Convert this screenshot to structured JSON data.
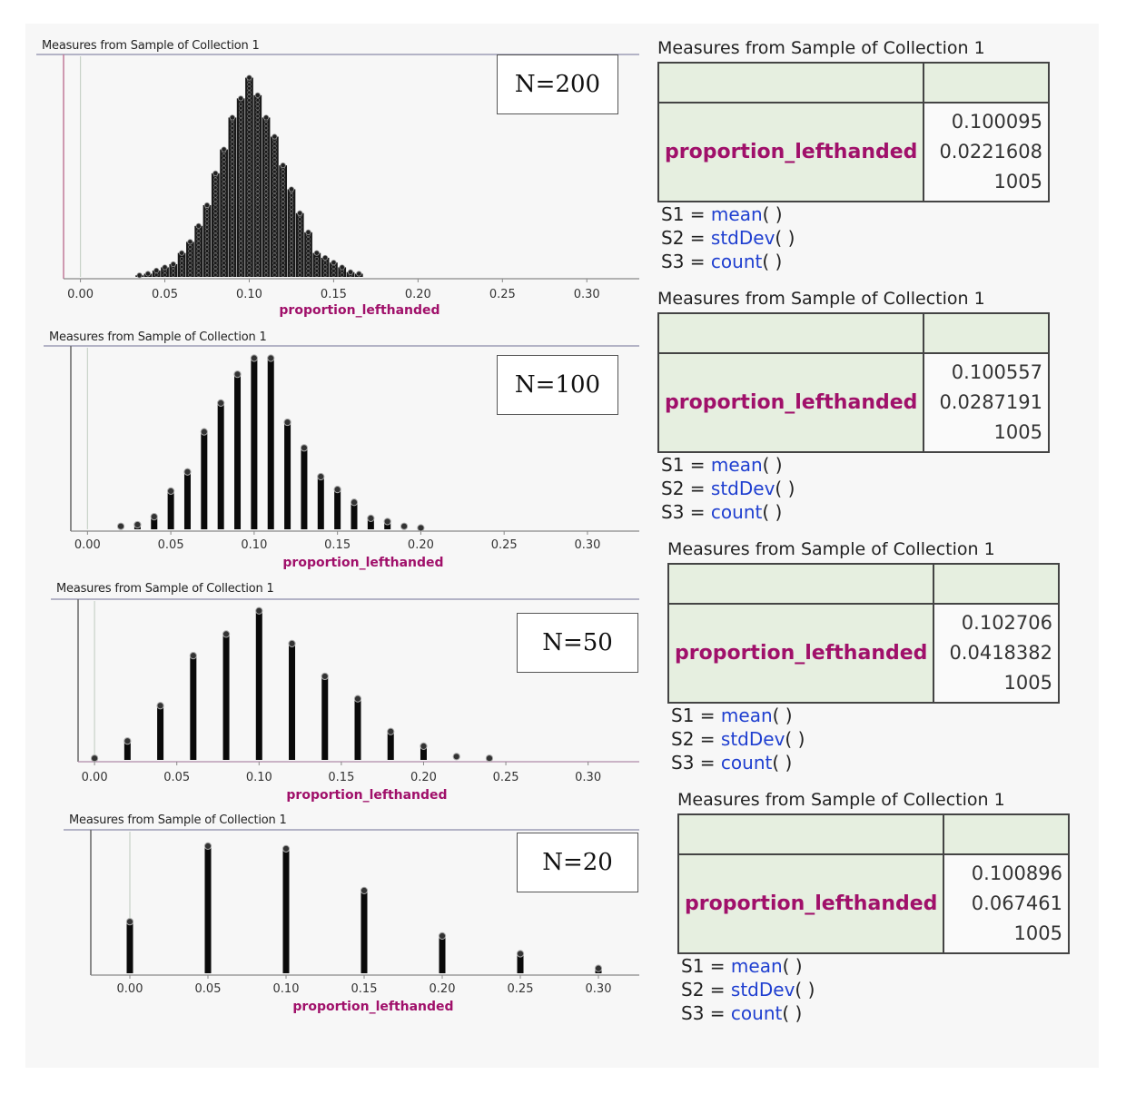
{
  "chart_data": [
    {
      "type": "scatter",
      "title": "Measures from Sample of Collection 1",
      "xlabel": "proportion_lefthanded",
      "x_ticks": [
        "0.00",
        "0.05",
        "0.10",
        "0.15",
        "0.20",
        "0.25",
        "0.30"
      ],
      "xlim": [
        -0.01,
        0.33
      ],
      "sample_size_label": "N=200",
      "ylim": [
        0,
        135
      ],
      "x": [
        0.035,
        0.04,
        0.045,
        0.05,
        0.055,
        0.06,
        0.065,
        0.07,
        0.075,
        0.08,
        0.085,
        0.09,
        0.095,
        0.1,
        0.105,
        0.11,
        0.115,
        0.12,
        0.125,
        0.13,
        0.135,
        0.14,
        0.145,
        0.15,
        0.155,
        0.16,
        0.165
      ],
      "values": [
        1,
        2,
        4,
        6,
        8,
        15,
        22,
        32,
        45,
        65,
        80,
        100,
        112,
        125,
        114,
        100,
        88,
        70,
        55,
        40,
        28,
        15,
        12,
        9,
        6,
        3,
        2
      ]
    },
    {
      "type": "scatter",
      "title": "Measures from Sample of Collection 1",
      "xlabel": "proportion_lefthanded",
      "x_ticks": [
        "0.00",
        "0.05",
        "0.10",
        "0.15",
        "0.20",
        "0.25",
        "0.30"
      ],
      "xlim": [
        -0.01,
        0.33
      ],
      "sample_size_label": "N=100",
      "ylim": [
        0,
        110
      ],
      "x": [
        0.02,
        0.03,
        0.04,
        0.05,
        0.06,
        0.07,
        0.08,
        0.09,
        0.1,
        0.11,
        0.12,
        0.13,
        0.14,
        0.15,
        0.16,
        0.17,
        0.18,
        0.19,
        0.2
      ],
      "values": [
        3,
        4,
        9,
        25,
        37,
        62,
        80,
        98,
        108,
        108,
        68,
        52,
        34,
        26,
        18,
        8,
        6,
        3,
        2
      ]
    },
    {
      "type": "scatter",
      "title": "Measures from Sample of Collection 1",
      "xlabel": "proportion_lefthanded",
      "x_ticks": [
        "0.00",
        "0.05",
        "0.10",
        "0.15",
        "0.20",
        "0.25",
        "0.30"
      ],
      "xlim": [
        -0.01,
        0.33
      ],
      "sample_size_label": "N=50",
      "ylim": [
        0,
        180
      ],
      "x": [
        0.0,
        0.02,
        0.04,
        0.06,
        0.08,
        0.1,
        0.12,
        0.14,
        0.16,
        0.18,
        0.2,
        0.22,
        0.24
      ],
      "values": [
        4,
        24,
        65,
        123,
        148,
        175,
        137,
        99,
        73,
        35,
        18,
        6,
        4
      ]
    },
    {
      "type": "scatter",
      "title": "Measures from Sample of Collection 1",
      "xlabel": "proportion_lefthanded",
      "x_ticks": [
        "0.00",
        "0.05",
        "0.10",
        "0.15",
        "0.20",
        "0.25",
        "0.30"
      ],
      "xlim": [
        -0.025,
        0.325
      ],
      "sample_size_label": "N=20",
      "ylim": [
        0,
        300
      ],
      "x": [
        0.0,
        0.05,
        0.1,
        0.15,
        0.2,
        0.25,
        0.3
      ],
      "values": [
        120,
        290,
        284,
        190,
        88,
        48,
        15
      ]
    }
  ],
  "tables": [
    {
      "title": "Measures from Sample of Collection 1",
      "attribute": "proportion_lefthanded",
      "mean": "0.100095",
      "stddev": "0.0221608",
      "count": "1005",
      "formulas": [
        {
          "label": "S1 =",
          "fn": "mean",
          "args": "(   )"
        },
        {
          "label": "S2 =",
          "fn": "stdDev",
          "args": "(   )"
        },
        {
          "label": "S3 =",
          "fn": "count",
          "args": "(   )"
        }
      ]
    },
    {
      "title": "Measures from Sample of Collection 1",
      "attribute": "proportion_lefthanded",
      "mean": "0.100557",
      "stddev": "0.0287191",
      "count": "1005",
      "formulas": [
        {
          "label": "S1 =",
          "fn": "mean",
          "args": "(   )"
        },
        {
          "label": "S2 =",
          "fn": "stdDev",
          "args": "(   )"
        },
        {
          "label": "S3 =",
          "fn": "count",
          "args": "(   )"
        }
      ]
    },
    {
      "title": "Measures from Sample of Collection 1",
      "attribute": "proportion_lefthanded",
      "mean": "0.102706",
      "stddev": "0.0418382",
      "count": "1005",
      "formulas": [
        {
          "label": "S1 =",
          "fn": "mean",
          "args": "(   )"
        },
        {
          "label": "S2 =",
          "fn": "stdDev",
          "args": "(   )"
        },
        {
          "label": "S3 =",
          "fn": "count",
          "args": "(   )"
        }
      ]
    },
    {
      "title": "Measures from Sample of Collection 1",
      "attribute": "proportion_lefthanded",
      "mean": "0.100896",
      "stddev": "0.067461",
      "count": "1005",
      "formulas": [
        {
          "label": "S1 =",
          "fn": "mean",
          "args": "(   )"
        },
        {
          "label": "S2 =",
          "fn": "stdDev",
          "args": "(   )"
        },
        {
          "label": "S3 =",
          "fn": "count",
          "args": "(   )"
        }
      ]
    }
  ]
}
